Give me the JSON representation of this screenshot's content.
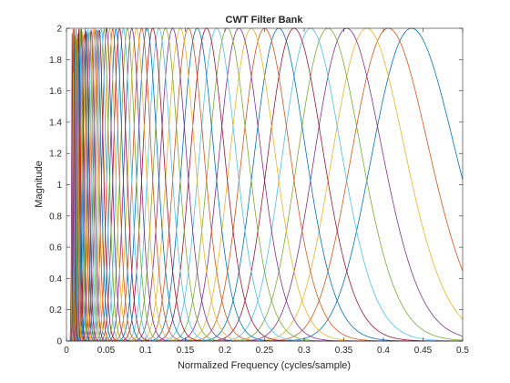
{
  "chart_data": {
    "type": "line",
    "title": "CWT Filter Bank",
    "xlabel": "Normalized Frequency  (cycles/sample)",
    "ylabel": "Magnitude",
    "xlim": [
      0,
      0.5
    ],
    "ylim": [
      0,
      2
    ],
    "xticks": [
      "0",
      "0.05",
      "0.1",
      "0.15",
      "0.2",
      "0.25",
      "0.3",
      "0.35",
      "0.4",
      "0.45",
      "0.5"
    ],
    "yticks": [
      "0",
      "0.2",
      "0.4",
      "0.6",
      "0.8",
      "1",
      "1.2",
      "1.4",
      "1.6",
      "1.8",
      "2"
    ],
    "grid": false,
    "legend": "none",
    "filter_peak_magnitude": 2,
    "filter_center_frequencies": [
      0.4355,
      0.4063,
      0.3791,
      0.3537,
      0.33,
      0.3079,
      0.2873,
      0.268,
      0.2501,
      0.2333,
      0.2177,
      0.2031,
      0.1895,
      0.1768,
      0.165,
      0.1539,
      0.1436,
      0.134,
      0.125,
      0.1167,
      0.1089,
      0.1016,
      0.0948,
      0.0884,
      0.0825,
      0.077,
      0.0718,
      0.067,
      0.0625,
      0.0583,
      0.0544,
      0.0508,
      0.0474,
      0.0442,
      0.0412,
      0.0385,
      0.0359,
      0.0335,
      0.0313,
      0.0292,
      0.0272,
      0.0254,
      0.0237,
      0.0221,
      0.0206,
      0.0192,
      0.018,
      0.0168,
      0.0156,
      0.0146,
      0.0136,
      0.0127,
      0.0118,
      0.011,
      0.0103,
      0.0096,
      0.009,
      0.0084,
      0.0078,
      0.0073
    ],
    "series_colors": [
      "#0072BD",
      "#D95319",
      "#EDB120",
      "#7E2F8E",
      "#77AC30",
      "#4DBEEE",
      "#A2142F"
    ]
  }
}
